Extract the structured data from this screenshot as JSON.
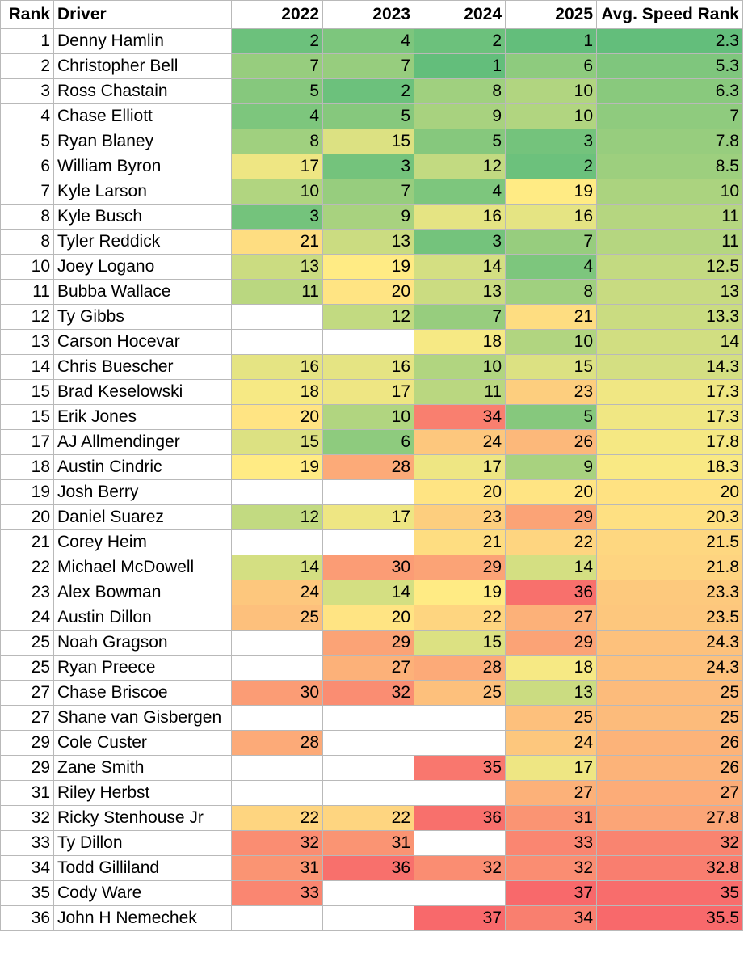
{
  "headers": [
    "Rank",
    "Driver",
    "2022",
    "2023",
    "2024",
    "2025",
    "Avg. Speed Rank"
  ],
  "rows": [
    {
      "rank": "1",
      "driver": "Denny Hamlin",
      "y2022": "2",
      "y2023": "4",
      "y2024": "2",
      "y2025": "1",
      "avg": "2.3"
    },
    {
      "rank": "2",
      "driver": "Christopher Bell",
      "y2022": "7",
      "y2023": "7",
      "y2024": "1",
      "y2025": "6",
      "avg": "5.3"
    },
    {
      "rank": "3",
      "driver": "Ross Chastain",
      "y2022": "5",
      "y2023": "2",
      "y2024": "8",
      "y2025": "10",
      "avg": "6.3"
    },
    {
      "rank": "4",
      "driver": "Chase Elliott",
      "y2022": "4",
      "y2023": "5",
      "y2024": "9",
      "y2025": "10",
      "avg": "7"
    },
    {
      "rank": "5",
      "driver": "Ryan Blaney",
      "y2022": "8",
      "y2023": "15",
      "y2024": "5",
      "y2025": "3",
      "avg": "7.8"
    },
    {
      "rank": "6",
      "driver": "William Byron",
      "y2022": "17",
      "y2023": "3",
      "y2024": "12",
      "y2025": "2",
      "avg": "8.5"
    },
    {
      "rank": "7",
      "driver": "Kyle Larson",
      "y2022": "10",
      "y2023": "7",
      "y2024": "4",
      "y2025": "19",
      "avg": "10"
    },
    {
      "rank": "8",
      "driver": "Kyle Busch",
      "y2022": "3",
      "y2023": "9",
      "y2024": "16",
      "y2025": "16",
      "avg": "11"
    },
    {
      "rank": "8",
      "driver": "Tyler Reddick",
      "y2022": "21",
      "y2023": "13",
      "y2024": "3",
      "y2025": "7",
      "avg": "11"
    },
    {
      "rank": "10",
      "driver": "Joey Logano",
      "y2022": "13",
      "y2023": "19",
      "y2024": "14",
      "y2025": "4",
      "avg": "12.5"
    },
    {
      "rank": "11",
      "driver": "Bubba Wallace",
      "y2022": "11",
      "y2023": "20",
      "y2024": "13",
      "y2025": "8",
      "avg": "13"
    },
    {
      "rank": "12",
      "driver": "Ty Gibbs",
      "y2022": "",
      "y2023": "12",
      "y2024": "7",
      "y2025": "21",
      "avg": "13.3"
    },
    {
      "rank": "13",
      "driver": "Carson Hocevar",
      "y2022": "",
      "y2023": "",
      "y2024": "18",
      "y2025": "10",
      "avg": "14"
    },
    {
      "rank": "14",
      "driver": "Chris Buescher",
      "y2022": "16",
      "y2023": "16",
      "y2024": "10",
      "y2025": "15",
      "avg": "14.3"
    },
    {
      "rank": "15",
      "driver": "Brad Keselowski",
      "y2022": "18",
      "y2023": "17",
      "y2024": "11",
      "y2025": "23",
      "avg": "17.3"
    },
    {
      "rank": "15",
      "driver": "Erik Jones",
      "y2022": "20",
      "y2023": "10",
      "y2024": "34",
      "y2025": "5",
      "avg": "17.3"
    },
    {
      "rank": "17",
      "driver": "AJ Allmendinger",
      "y2022": "15",
      "y2023": "6",
      "y2024": "24",
      "y2025": "26",
      "avg": "17.8"
    },
    {
      "rank": "18",
      "driver": "Austin Cindric",
      "y2022": "19",
      "y2023": "28",
      "y2024": "17",
      "y2025": "9",
      "avg": "18.3"
    },
    {
      "rank": "19",
      "driver": "Josh Berry",
      "y2022": "",
      "y2023": "",
      "y2024": "20",
      "y2025": "20",
      "avg": "20"
    },
    {
      "rank": "20",
      "driver": "Daniel Suarez",
      "y2022": "12",
      "y2023": "17",
      "y2024": "23",
      "y2025": "29",
      "avg": "20.3"
    },
    {
      "rank": "21",
      "driver": "Corey Heim",
      "y2022": "",
      "y2023": "",
      "y2024": "21",
      "y2025": "22",
      "avg": "21.5"
    },
    {
      "rank": "22",
      "driver": "Michael McDowell",
      "y2022": "14",
      "y2023": "30",
      "y2024": "29",
      "y2025": "14",
      "avg": "21.8"
    },
    {
      "rank": "23",
      "driver": "Alex Bowman",
      "y2022": "24",
      "y2023": "14",
      "y2024": "19",
      "y2025": "36",
      "avg": "23.3"
    },
    {
      "rank": "24",
      "driver": "Austin Dillon",
      "y2022": "25",
      "y2023": "20",
      "y2024": "22",
      "y2025": "27",
      "avg": "23.5"
    },
    {
      "rank": "25",
      "driver": "Noah Gragson",
      "y2022": "",
      "y2023": "29",
      "y2024": "15",
      "y2025": "29",
      "avg": "24.3"
    },
    {
      "rank": "25",
      "driver": "Ryan Preece",
      "y2022": "",
      "y2023": "27",
      "y2024": "28",
      "y2025": "18",
      "avg": "24.3"
    },
    {
      "rank": "27",
      "driver": "Chase Briscoe",
      "y2022": "30",
      "y2023": "32",
      "y2024": "25",
      "y2025": "13",
      "avg": "25"
    },
    {
      "rank": "27",
      "driver": "Shane van Gisbergen",
      "y2022": "",
      "y2023": "",
      "y2024": "",
      "y2025": "25",
      "avg": "25"
    },
    {
      "rank": "29",
      "driver": "Cole Custer",
      "y2022": "28",
      "y2023": "",
      "y2024": "",
      "y2025": "24",
      "avg": "26"
    },
    {
      "rank": "29",
      "driver": "Zane Smith",
      "y2022": "",
      "y2023": "",
      "y2024": "35",
      "y2025": "17",
      "avg": "26"
    },
    {
      "rank": "31",
      "driver": "Riley Herbst",
      "y2022": "",
      "y2023": "",
      "y2024": "",
      "y2025": "27",
      "avg": "27"
    },
    {
      "rank": "32",
      "driver": "Ricky Stenhouse Jr",
      "y2022": "22",
      "y2023": "22",
      "y2024": "36",
      "y2025": "31",
      "avg": "27.8"
    },
    {
      "rank": "33",
      "driver": "Ty Dillon",
      "y2022": "32",
      "y2023": "31",
      "y2024": "",
      "y2025": "33",
      "avg": "32"
    },
    {
      "rank": "34",
      "driver": "Todd Gilliland",
      "y2022": "31",
      "y2023": "36",
      "y2024": "32",
      "y2025": "32",
      "avg": "32.8"
    },
    {
      "rank": "35",
      "driver": "Cody Ware",
      "y2022": "33",
      "y2023": "",
      "y2024": "",
      "y2025": "37",
      "avg": "35"
    },
    {
      "rank": "36",
      "driver": "John H Nemechek",
      "y2022": "",
      "y2023": "",
      "y2024": "37",
      "y2025": "34",
      "avg": "35.5"
    }
  ],
  "color_scale": {
    "low": "#63be7b",
    "mid": "#ffeb84",
    "high": "#f8696b"
  },
  "scale_range": {
    "year_cols": [
      1,
      37
    ],
    "avg_col": [
      2.3,
      35.5
    ]
  }
}
